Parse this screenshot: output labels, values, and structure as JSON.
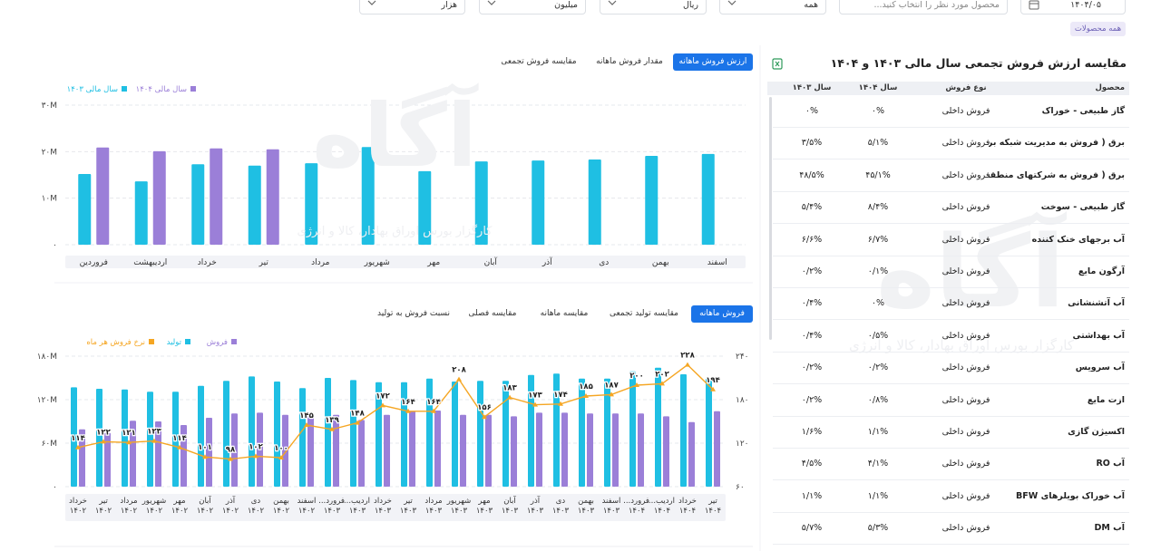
{
  "filters": {
    "date": "۱۴۰۴/۰۵",
    "product_placeholder": "محصول مورد نظر را انتخاب کنید...",
    "sale_type": "همه",
    "currency": "ریال",
    "unit": "میلیون",
    "scale": "هزار",
    "chip": "همه محصولات"
  },
  "watermark": {
    "brand": "آگاه",
    "tagline": "کارگزار بورس اوراق بهادار، کالا و انرژی"
  },
  "top_panel": {
    "tabs": [
      "ارزش فروش ماهانه",
      "مقدار فروش ماهانه",
      "مقایسه فروش تجمعی"
    ],
    "active_tab": 0
  },
  "bottom_panel": {
    "tabs": [
      "فروش ماهانه",
      "مقایسه تولید تجمعی",
      "مقایسه ماهانه",
      "مقایسه فصلی",
      "نسبت فروش به تولید"
    ],
    "active_tab": 0
  },
  "table": {
    "title": "مقایسه ارزش فروش تجمعی سال مالی ۱۴۰۳ و ۱۴۰۴",
    "columns": [
      "محصول",
      "نوع فروش",
      "سال ۱۴۰۴",
      "سال ۱۴۰۳"
    ],
    "rows": [
      [
        "گاز طبیعی - خوراک",
        "فروش داخلی",
        "۰%",
        "۰%"
      ],
      [
        "برق ( فروش به مدیریت شبکه بر...",
        "فروش داخلی",
        "۵/۱%",
        "۳/۵%"
      ],
      [
        "برق ( فروش به شرکتهای منطقه )",
        "فروش داخلی",
        "۴۵/۱%",
        "۴۸/۵%"
      ],
      [
        "گاز طبیعی - سوخت",
        "فروش داخلی",
        "۸/۴%",
        "۵/۴%"
      ],
      [
        "آب برجهای خنک کننده",
        "فروش داخلی",
        "۶/۷%",
        "۶/۶%"
      ],
      [
        "آرگون مایع",
        "فروش داخلی",
        "۰/۱%",
        "۰/۲%"
      ],
      [
        "آب آتشنشانی",
        "فروش داخلی",
        "۰%",
        "۰/۴%"
      ],
      [
        "آب بهداشتی",
        "فروش داخلی",
        "۰/۵%",
        "۰/۴%"
      ],
      [
        "آب سرویس",
        "فروش داخلی",
        "۰/۲%",
        "۰/۲%"
      ],
      [
        "ازت مایع",
        "فروش داخلی",
        "۰/۸%",
        "۰/۲%"
      ],
      [
        "اکسیژن گازی",
        "فروش داخلی",
        "۱/۱%",
        "۱/۶%"
      ],
      [
        "آب RO",
        "فروش داخلی",
        "۴/۱%",
        "۴/۵%"
      ],
      [
        "آب خوراک بویلرهای BFW",
        "فروش داخلی",
        "۱/۱%",
        "۱/۱%"
      ],
      [
        "آب DM",
        "فروش داخلی",
        "۵/۳%",
        "۵/۷%"
      ]
    ]
  },
  "chart_data": [
    {
      "type": "bar",
      "categories": [
        "فروردین",
        "اردیبهشت",
        "خرداد",
        "تیر",
        "مرداد",
        "شهریور",
        "مهر",
        "آبان",
        "آذر",
        "دی",
        "بهمن",
        "اسفند"
      ],
      "series": [
        {
          "name": "سال مالی ۱۴۰۳",
          "color": "#1fbfe3",
          "values": [
            15.2,
            13.6,
            17.3,
            17.0,
            17.5,
            21.0,
            15.8,
            17.9,
            18.1,
            18.3,
            19.1,
            19.5
          ]
        },
        {
          "name": "سال مالی ۱۴۰۴",
          "color": "#9b7fd8",
          "values": [
            20.9,
            20.1,
            20.7,
            20.5,
            null,
            null,
            null,
            null,
            null,
            null,
            null,
            null
          ]
        }
      ],
      "ylim": [
        0,
        30
      ],
      "yticks": [
        {
          "value": 0,
          "label": "۰"
        },
        {
          "value": 10,
          "label": "۱۰M"
        },
        {
          "value": 20,
          "label": "۲۰M"
        },
        {
          "value": 30,
          "label": "۳۰M"
        }
      ],
      "grid": true
    },
    {
      "type": "combo",
      "categories": [
        "خرداد ۱۴۰۲",
        "تیر ۱۴۰۲",
        "مرداد ۱۴۰۲",
        "شهریور ۱۴۰۲",
        "مهر ۱۴۰۲",
        "آبان ۱۴۰۲",
        "آذر ۱۴۰۲",
        "دی ۱۴۰۲",
        "بهمن ۱۴۰۲",
        "اسفند ۱۴۰۲",
        "فرورد... ۱۴۰۳",
        "اردیب... ۱۴۰۳",
        "خرداد ۱۴۰۳",
        "تیر ۱۴۰۳",
        "مرداد ۱۴۰۳",
        "شهریور ۱۴۰۳",
        "مهر ۱۴۰۳",
        "آبان ۱۴۰۳",
        "آذر ۱۴۰۳",
        "دی ۱۴۰۳",
        "بهمن ۱۴۰۳",
        "اسفند ۱۴۰۳",
        "فرورد... ۱۴۰۴",
        "اردیب... ۱۴۰۴",
        "خرداد ۱۴۰۴",
        "تیر ۱۴۰۴"
      ],
      "series": [
        {
          "name": "تولید",
          "color": "#1fbfe3",
          "type": "bar",
          "values": [
            137,
            135,
            134,
            131,
            131,
            139,
            146,
            152,
            145,
            136,
            150,
            147,
            144,
            144,
            149,
            145,
            146,
            146,
            154,
            156,
            149,
            149,
            159,
            164,
            155,
            149
          ]
        },
        {
          "name": "فروش",
          "color": "#9b7fd8",
          "type": "bar",
          "values": [
            79,
            74,
            91,
            90,
            85,
            95,
            101,
            102,
            99,
            102,
            99,
            92,
            99,
            104,
            105,
            99,
            99,
            97,
            102,
            102,
            101,
            101,
            101,
            97,
            89,
            104
          ]
        },
        {
          "name": "نرخ فروش هر ماه",
          "color": "#f5a623",
          "type": "line",
          "axis": "y2",
          "values": [
            114,
            122,
            121,
            123,
            114,
            101,
            98,
            102,
            100,
            145,
            139,
            148,
            172,
            164,
            164,
            208,
            156,
            183,
            173,
            174,
            185,
            187,
            200,
            202,
            228,
            194
          ],
          "value_labels": [
            "۱۱۴",
            "۱۲۲",
            "۱۲۱",
            "۱۲۳",
            "۱۱۴",
            "۱۰۱",
            "۹۸",
            "۱۰۲",
            "۱۰۰",
            "۱۴۵",
            "۱۳۹",
            "۱۴۸",
            "۱۷۲",
            "۱۶۴",
            "۱۶۴",
            "۲۰۸",
            "۱۵۶",
            "۱۸۳",
            "۱۷۳",
            "۱۷۴",
            "۱۸۵",
            "۱۸۷",
            "۲۰۰",
            "۲۰۲",
            "۲۲۸",
            "۱۹۴"
          ]
        }
      ],
      "ylim": [
        0,
        180
      ],
      "yticks": [
        {
          "value": 0,
          "label": "۰"
        },
        {
          "value": 60,
          "label": "۶۰M"
        },
        {
          "value": 120,
          "label": "۱۲۰M"
        },
        {
          "value": 180,
          "label": "۱۸۰M"
        }
      ],
      "y2lim": [
        60,
        240
      ],
      "y2ticks": [
        {
          "value": 60,
          "label": "۶۰"
        },
        {
          "value": 120,
          "label": "۱۲۰"
        },
        {
          "value": 180,
          "label": "۱۸۰"
        },
        {
          "value": 240,
          "label": "۲۴۰"
        }
      ],
      "grid": true
    }
  ]
}
